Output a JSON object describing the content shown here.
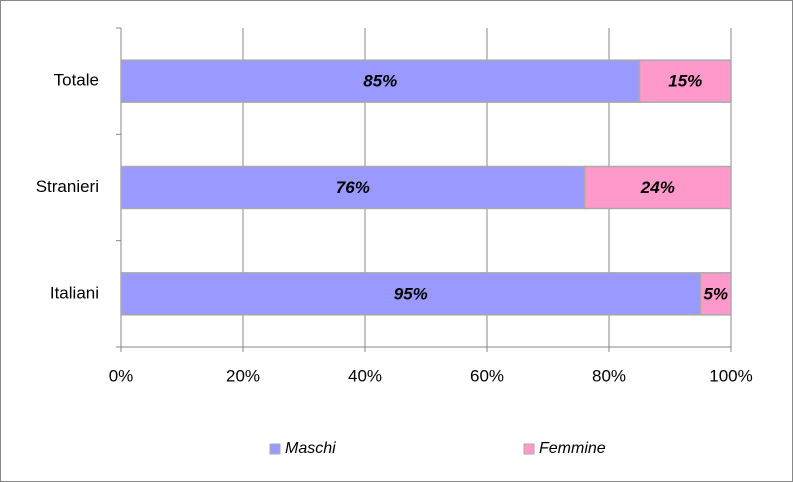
{
  "chart_data": {
    "type": "bar",
    "orientation": "horizontal",
    "stacked": true,
    "categories": [
      "Totale",
      "Stranieri",
      "Italiani"
    ],
    "series": [
      {
        "name": "Maschi",
        "color": "#9999ff",
        "values": [
          85,
          76,
          95
        ],
        "value_labels": [
          "85%",
          "76%",
          "95%"
        ]
      },
      {
        "name": "Femmine",
        "color": "#ff99cc",
        "values": [
          15,
          24,
          5
        ],
        "value_labels": [
          "15%",
          "24%",
          "5%"
        ]
      }
    ],
    "xlim": [
      0,
      100
    ],
    "xticks": [
      {
        "value": 0,
        "label": "0%"
      },
      {
        "value": 20,
        "label": "20%"
      },
      {
        "value": 40,
        "label": "40%"
      },
      {
        "value": 60,
        "label": "60%"
      },
      {
        "value": 80,
        "label": "80%"
      },
      {
        "value": 100,
        "label": "100%"
      }
    ],
    "grid": true,
    "legend": "bottom"
  }
}
